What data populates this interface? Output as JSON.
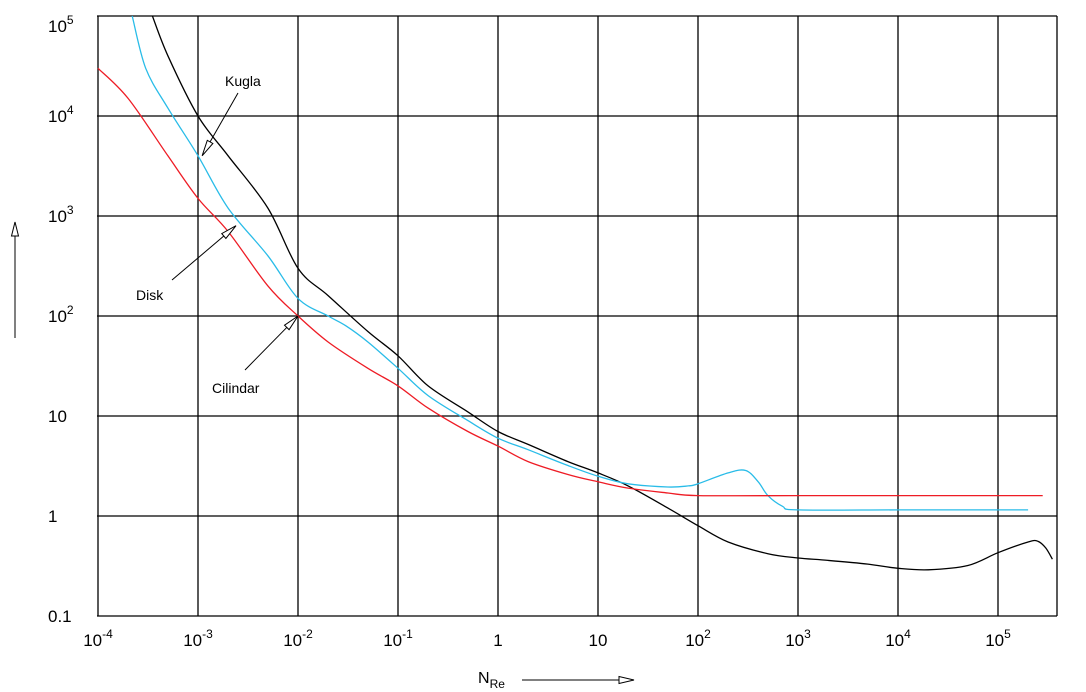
{
  "chart_data": {
    "type": "line",
    "x_scale": "log",
    "y_scale": "log",
    "xlim": [
      0.0001,
      300000
    ],
    "ylim": [
      0.1,
      100000
    ],
    "grid": true,
    "xlabel_main": "N",
    "xlabel_sub": "Re",
    "x_ticks": [
      {
        "value": 0.0001,
        "base": "10",
        "exp": "-4"
      },
      {
        "value": 0.001,
        "base": "10",
        "exp": "-3"
      },
      {
        "value": 0.01,
        "base": "10",
        "exp": "-2"
      },
      {
        "value": 0.1,
        "base": "10",
        "exp": "-1"
      },
      {
        "value": 1,
        "base": "1",
        "exp": ""
      },
      {
        "value": 10,
        "base": "10",
        "exp": ""
      },
      {
        "value": 100,
        "base": "10",
        "exp": "2"
      },
      {
        "value": 1000,
        "base": "10",
        "exp": "3"
      },
      {
        "value": 10000,
        "base": "10",
        "exp": "4"
      },
      {
        "value": 100000,
        "base": "10",
        "exp": "5"
      }
    ],
    "y_ticks": [
      {
        "value": 0.1,
        "base": "0.1",
        "exp": ""
      },
      {
        "value": 1,
        "base": "1",
        "exp": ""
      },
      {
        "value": 10,
        "base": "10",
        "exp": ""
      },
      {
        "value": 100,
        "base": "10",
        "exp": "2"
      },
      {
        "value": 1000,
        "base": "10",
        "exp": "3"
      },
      {
        "value": 10000,
        "base": "10",
        "exp": "4"
      },
      {
        "value": 100000,
        "base": "10",
        "exp": "5"
      }
    ],
    "series": [
      {
        "name": "Kugla",
        "color": "#000000",
        "points": [
          [
            0.00035,
            100000
          ],
          [
            0.0005,
            40000
          ],
          [
            0.001,
            10000
          ],
          [
            0.002,
            4000
          ],
          [
            0.005,
            1200
          ],
          [
            0.01,
            300
          ],
          [
            0.02,
            160
          ],
          [
            0.05,
            70
          ],
          [
            0.1,
            40
          ],
          [
            0.2,
            20
          ],
          [
            0.5,
            11
          ],
          [
            1,
            7
          ],
          [
            2,
            5.2
          ],
          [
            5,
            3.5
          ],
          [
            10,
            2.7
          ],
          [
            20,
            2
          ],
          [
            50,
            1.2
          ],
          [
            100,
            0.8
          ],
          [
            200,
            0.55
          ],
          [
            500,
            0.42
          ],
          [
            1000,
            0.38
          ],
          [
            2000,
            0.36
          ],
          [
            5000,
            0.33
          ],
          [
            10000,
            0.3
          ],
          [
            20000,
            0.29
          ],
          [
            50000,
            0.32
          ],
          [
            100000,
            0.43
          ],
          [
            200000,
            0.55
          ],
          [
            250000,
            0.56
          ],
          [
            300000,
            0.48
          ],
          [
            350000,
            0.37
          ]
        ]
      },
      {
        "name": "Disk",
        "color": "#29bce8",
        "points": [
          [
            0.00022,
            100000
          ],
          [
            0.0003,
            30000
          ],
          [
            0.0005,
            12000
          ],
          [
            0.001,
            4000
          ],
          [
            0.002,
            1200
          ],
          [
            0.005,
            400
          ],
          [
            0.01,
            150
          ],
          [
            0.02,
            100
          ],
          [
            0.03,
            80
          ],
          [
            0.05,
            55
          ],
          [
            0.1,
            30
          ],
          [
            0.2,
            16
          ],
          [
            0.5,
            9
          ],
          [
            1,
            6
          ],
          [
            2,
            4.6
          ],
          [
            5,
            3.2
          ],
          [
            10,
            2.5
          ],
          [
            20,
            2.1
          ],
          [
            50,
            1.95
          ],
          [
            80,
            2.0
          ],
          [
            100,
            2.1
          ],
          [
            200,
            2.7
          ],
          [
            300,
            2.85
          ],
          [
            400,
            2.2
          ],
          [
            500,
            1.6
          ],
          [
            700,
            1.25
          ],
          [
            1000,
            1.15
          ],
          [
            10000,
            1.15
          ],
          [
            100000,
            1.15
          ],
          [
            200000,
            1.15
          ]
        ]
      },
      {
        "name": "Cilindar",
        "color": "#ee1c25",
        "points": [
          [
            0.0001,
            30000
          ],
          [
            0.0002,
            15000
          ],
          [
            0.0005,
            4000
          ],
          [
            0.001,
            1500
          ],
          [
            0.002,
            700
          ],
          [
            0.005,
            200
          ],
          [
            0.01,
            100
          ],
          [
            0.02,
            55
          ],
          [
            0.05,
            30
          ],
          [
            0.1,
            20
          ],
          [
            0.2,
            12
          ],
          [
            0.5,
            7
          ],
          [
            1,
            5
          ],
          [
            2,
            3.5
          ],
          [
            5,
            2.6
          ],
          [
            10,
            2.2
          ],
          [
            20,
            1.9
          ],
          [
            50,
            1.7
          ],
          [
            100,
            1.6
          ],
          [
            1000,
            1.6
          ],
          [
            10000,
            1.6
          ],
          [
            100000,
            1.6
          ],
          [
            280000,
            1.6
          ]
        ]
      }
    ],
    "annotations": [
      {
        "text": "Kugla",
        "target": [
          0.0011,
          4000
        ]
      },
      {
        "text": "Disk",
        "target": [
          0.0024,
          800
        ]
      },
      {
        "text": "Cilindar",
        "target": [
          0.01,
          100
        ]
      }
    ]
  }
}
